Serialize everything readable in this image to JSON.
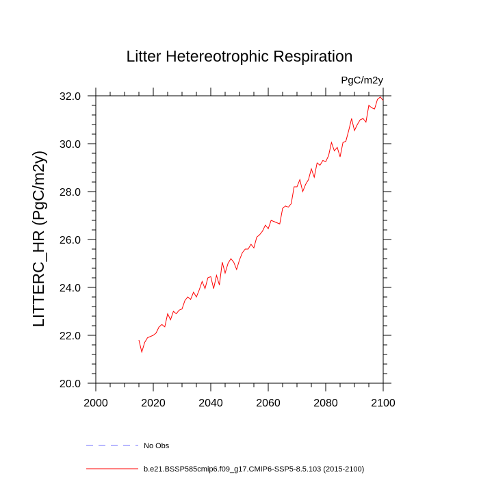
{
  "chart_data": {
    "type": "line",
    "title": "Litter Hetereotrophic Respiration",
    "units_label": "PgC/m2y",
    "ylabel": "LITTERC_HR  (PgC/m2y)",
    "xlabel": "",
    "xlim": [
      2000,
      2100
    ],
    "ylim": [
      20.0,
      32.0
    ],
    "x_ticks": [
      "2000",
      "2020",
      "2040",
      "2060",
      "2080",
      "2100"
    ],
    "x_tick_values": [
      2000,
      2020,
      2040,
      2060,
      2080,
      2100
    ],
    "y_ticks": [
      "20.0",
      "22.0",
      "24.0",
      "26.0",
      "28.0",
      "30.0",
      "32.0"
    ],
    "y_tick_values": [
      20,
      22,
      24,
      26,
      28,
      30,
      32
    ],
    "grid": false,
    "legend_position": "bottom-left, below plot",
    "series": [
      {
        "name": "No Obs",
        "color": "#0000ff",
        "style": "dashed",
        "x": [],
        "y": []
      },
      {
        "name": "b.e21.BSSP585cmip6.f09_g17.CMIP6-SSP5-8.5.103 (2015-2100)",
        "color": "#ff0000",
        "style": "solid",
        "x": [
          2015,
          2016,
          2017,
          2018,
          2019,
          2020,
          2021,
          2022,
          2023,
          2024,
          2025,
          2026,
          2027,
          2028,
          2029,
          2030,
          2031,
          2032,
          2033,
          2034,
          2035,
          2036,
          2037,
          2038,
          2039,
          2040,
          2041,
          2042,
          2043,
          2044,
          2045,
          2046,
          2047,
          2048,
          2049,
          2050,
          2051,
          2052,
          2053,
          2054,
          2055,
          2056,
          2057,
          2058,
          2059,
          2060,
          2061,
          2062,
          2063,
          2064,
          2065,
          2066,
          2067,
          2068,
          2069,
          2070,
          2071,
          2072,
          2073,
          2074,
          2075,
          2076,
          2077,
          2078,
          2079,
          2080,
          2081,
          2082,
          2083,
          2084,
          2085,
          2086,
          2087,
          2088,
          2089,
          2090,
          2091,
          2092,
          2093,
          2094,
          2095,
          2096,
          2097,
          2098,
          2099,
          2100
        ],
        "y": [
          21.8,
          21.3,
          21.7,
          21.9,
          21.95,
          22.0,
          22.1,
          22.35,
          22.45,
          22.35,
          22.9,
          22.65,
          23.0,
          22.9,
          23.05,
          23.1,
          23.45,
          23.6,
          23.5,
          23.8,
          23.6,
          23.9,
          24.25,
          23.95,
          24.4,
          24.45,
          23.95,
          24.5,
          24.1,
          25.05,
          24.6,
          25.0,
          25.2,
          25.05,
          24.75,
          25.15,
          25.45,
          25.6,
          25.6,
          25.8,
          25.65,
          26.1,
          26.2,
          26.35,
          26.6,
          26.45,
          26.8,
          26.75,
          26.7,
          26.65,
          27.3,
          27.4,
          27.35,
          27.5,
          28.2,
          28.2,
          28.5,
          28.0,
          28.3,
          28.5,
          28.95,
          28.6,
          29.2,
          29.1,
          29.3,
          29.25,
          29.5,
          30.05,
          29.7,
          29.85,
          29.45,
          30.05,
          30.1,
          30.55,
          31.05,
          30.55,
          30.8,
          31.0,
          31.05,
          30.9,
          31.6,
          31.5,
          31.45,
          31.85,
          31.95,
          31.8
        ]
      }
    ]
  }
}
